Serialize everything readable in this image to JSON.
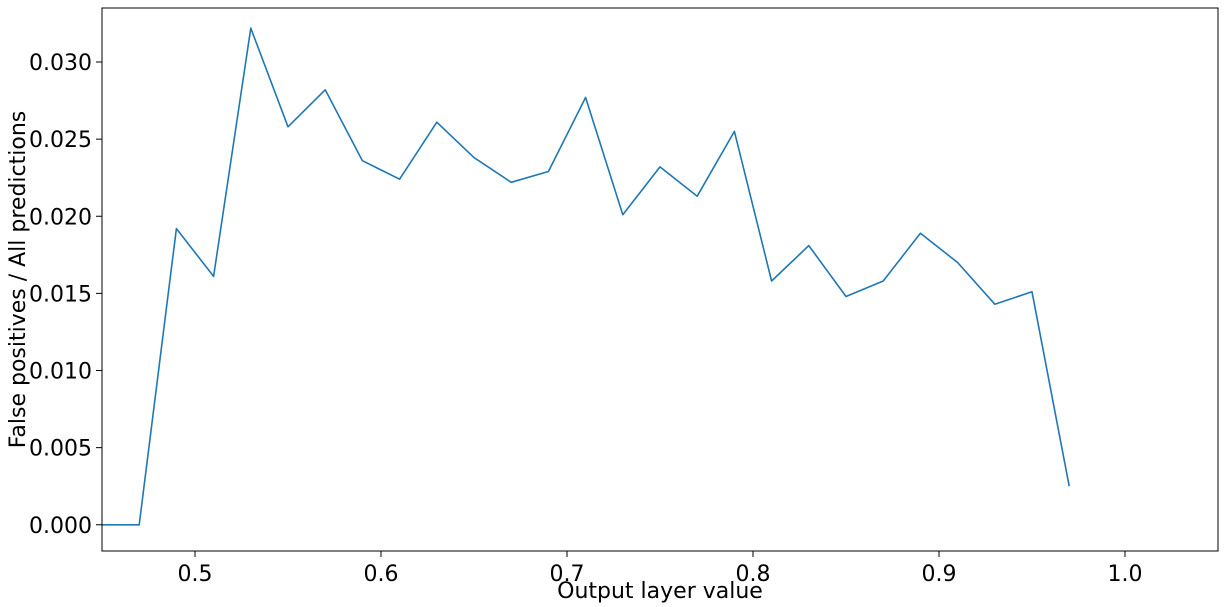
{
  "chart_data": {
    "type": "line",
    "xlabel": "Output layer value",
    "ylabel": "False positives / All predictions",
    "xlim": [
      0.45,
      1.05
    ],
    "ylim": [
      -0.0017,
      0.0335
    ],
    "grid": false,
    "xticks": [
      0.5,
      0.6,
      0.7,
      0.8,
      0.9,
      1.0
    ],
    "xtick_labels": [
      "0.5",
      "0.6",
      "0.7",
      "0.8",
      "0.9",
      "1.0"
    ],
    "yticks": [
      0.0,
      0.005,
      0.01,
      0.015,
      0.02,
      0.025,
      0.03
    ],
    "ytick_labels": [
      "0.000",
      "0.005",
      "0.010",
      "0.015",
      "0.020",
      "0.025",
      "0.030"
    ],
    "series": [
      {
        "color": "#1f77b4",
        "x": [
          0.45,
          0.47,
          0.49,
          0.51,
          0.53,
          0.55,
          0.57,
          0.59,
          0.61,
          0.63,
          0.65,
          0.67,
          0.69,
          0.71,
          0.73,
          0.75,
          0.77,
          0.79,
          0.81,
          0.83,
          0.85,
          0.87,
          0.89,
          0.91,
          0.93,
          0.95,
          0.97
        ],
        "y": [
          0.0,
          0.0,
          0.0192,
          0.0161,
          0.0322,
          0.0258,
          0.0282,
          0.0236,
          0.0224,
          0.0261,
          0.0238,
          0.0222,
          0.0229,
          0.0277,
          0.0201,
          0.0232,
          0.0213,
          0.0255,
          0.0158,
          0.0181,
          0.0148,
          0.0158,
          0.0189,
          0.017,
          0.0143,
          0.0151,
          0.0025
        ]
      }
    ]
  }
}
